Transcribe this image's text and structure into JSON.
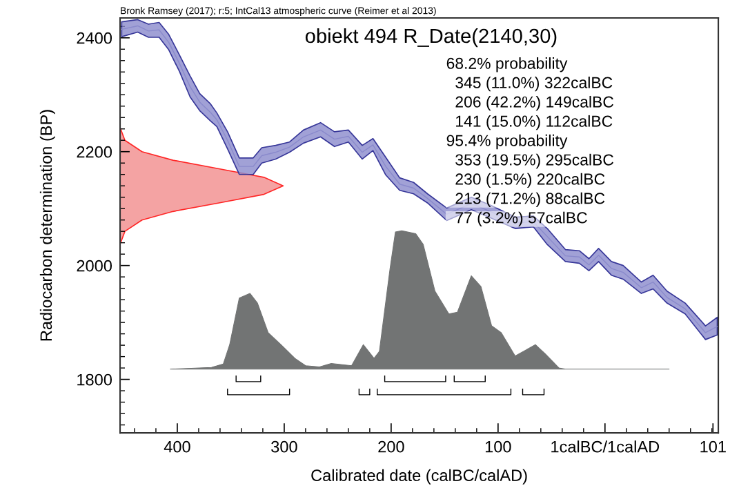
{
  "chart_data": {
    "type": "area",
    "title": "obiekt 494 R_Date(2140,30)",
    "subtitle": "Bronk Ramsey (2017); r:5; IntCal13 atmospheric curve (Reimer et al 2013)",
    "xlabel": "Calibrated date (calBC/calAD)",
    "ylabel": "Radiocarbon determination (BP)",
    "annotations": [
      "68.2% probability",
      "  345 (11.0%) 322calBC",
      "  206 (42.2%) 149calBC",
      "  141 (15.0%) 112calBC",
      "95.4% probability",
      "  353 (19.5%) 295calBC",
      "  230 (1.5%) 220calBC",
      "  213 (71.2%) 88calBC",
      "  77 (3.2%) 57calBC"
    ],
    "xlim": [
      -453.5,
      106
    ],
    "ylim": [
      1706,
      2435
    ],
    "xticks": [
      {
        "value": -400,
        "label": "400"
      },
      {
        "value": -300,
        "label": "300"
      },
      {
        "value": -200,
        "label": "200"
      },
      {
        "value": -100,
        "label": "100"
      },
      {
        "value": 0,
        "label": "1calBC/1calAD"
      },
      101
    ],
    "yticks": [
      1800,
      2000,
      2200,
      2400
    ],
    "grid": false,
    "series": [
      {
        "type": "line",
        "color": "#8a8acc",
        "x": [
          -452,
          -437,
          -427,
          -417,
          -408,
          -398,
          -388,
          -379,
          -369,
          -363,
          -353,
          -342,
          -329,
          -321,
          -308,
          -295,
          -282,
          -266,
          -253,
          -240,
          -227,
          -217,
          -205,
          -192,
          -179,
          -166,
          -148,
          -125,
          -106,
          -84,
          -67,
          -54,
          -37,
          -24,
          -15,
          -6,
          6,
          17,
          34,
          45,
          58,
          75,
          94,
          105
        ],
        "values": [
          2415,
          2421,
          2412,
          2414,
          2392,
          2355,
          2314,
          2287,
          2269,
          2256,
          2220,
          2174,
          2174,
          2193,
          2199,
          2208,
          2226,
          2238,
          2222,
          2227,
          2199,
          2212,
          2174,
          2143,
          2136,
          2118,
          2090,
          2109,
          2094,
          2075,
          2077,
          2051,
          2017,
          2015,
          2001,
          2018,
          1995,
          1988,
          1961,
          1971,
          1944,
          1924,
          1882,
          1893
        ],
        "upper": [
          2428,
          2432,
          2424,
          2427,
          2406,
          2370,
          2333,
          2302,
          2284,
          2268,
          2235,
          2189,
          2189,
          2207,
          2211,
          2217,
          2238,
          2251,
          2235,
          2238,
          2211,
          2223,
          2190,
          2154,
          2146,
          2126,
          2101,
          2120,
          2105,
          2085,
          2087,
          2065,
          2028,
          2026,
          2012,
          2030,
          2007,
          2000,
          1971,
          1983,
          1955,
          1934,
          1894,
          1909
        ],
        "lower": [
          2402,
          2410,
          2401,
          2401,
          2379,
          2341,
          2296,
          2272,
          2254,
          2244,
          2205,
          2160,
          2160,
          2180,
          2187,
          2199,
          2215,
          2226,
          2209,
          2217,
          2187,
          2202,
          2159,
          2132,
          2126,
          2110,
          2079,
          2098,
          2083,
          2065,
          2068,
          2037,
          2007,
          2004,
          1991,
          2007,
          1983,
          1976,
          1951,
          1959,
          1934,
          1915,
          1870,
          1878
        ]
      },
      {
        "color": "#f4a3a3",
        "x": [
          -453,
          -449,
          -433,
          -404,
          -361,
          -319,
          -301,
          -319,
          -361,
          -404,
          -433,
          -449,
          -453
        ],
        "values": [
          2240,
          2220,
          2200,
          2185,
          2170,
          2155,
          2140,
          2125,
          2110,
          2095,
          2080,
          2060,
          2040
        ]
      },
      {
        "color": "#727474",
        "x": [
          -406.5,
          -368,
          -357,
          -351,
          -342,
          -332,
          -325,
          -315,
          -303,
          -290,
          -280,
          -267,
          -256,
          -237,
          -226,
          -216,
          -211,
          -201,
          -196,
          -190,
          -177,
          -170,
          -159,
          -146,
          -138,
          -125,
          -116,
          -106,
          -97,
          -84,
          -65,
          -56,
          -43,
          -37,
          60
        ],
        "values": [
          1818,
          1821,
          1827,
          1861,
          1943,
          1951,
          1934,
          1882,
          1861,
          1837,
          1824,
          1822,
          1828,
          1824,
          1861,
          1837,
          1849,
          1995,
          2059,
          2061,
          2056,
          2037,
          1955,
          1915,
          1918,
          1982,
          1963,
          1894,
          1882,
          1841,
          1861,
          1845,
          1820,
          1818,
          1818
        ]
      },
      {
        "type": "line",
        "color": "#000000",
        "x": [
          -345,
          -345,
          -322,
          -322
        ],
        "values": [
          1806,
          1796,
          1796,
          1806
        ]
      },
      {
        "type": "line",
        "color": "#000000",
        "x": [
          -206,
          -206,
          -149,
          -149
        ],
        "values": [
          1806,
          1796,
          1796,
          1806
        ]
      },
      {
        "type": "line",
        "color": "#000000",
        "x": [
          -141,
          -141,
          -112,
          -112
        ],
        "values": [
          1806,
          1796,
          1796,
          1806
        ]
      },
      {
        "type": "line",
        "color": "#000000",
        "x": [
          -353,
          -353,
          -295,
          -295
        ],
        "values": [
          1783,
          1773,
          1773,
          1783
        ]
      },
      {
        "type": "line",
        "color": "#000000",
        "x": [
          -230,
          -230,
          -220,
          -220
        ],
        "values": [
          1783,
          1773,
          1773,
          1783
        ]
      },
      {
        "type": "line",
        "color": "#000000",
        "x": [
          -213,
          -213,
          -88,
          -88
        ],
        "values": [
          1783,
          1773,
          1773,
          1783
        ]
      },
      {
        "type": "line",
        "color": "#000000",
        "x": [
          -77,
          -77,
          -57,
          -57
        ],
        "values": [
          1783,
          1773,
          1773,
          1783
        ]
      }
    ]
  }
}
